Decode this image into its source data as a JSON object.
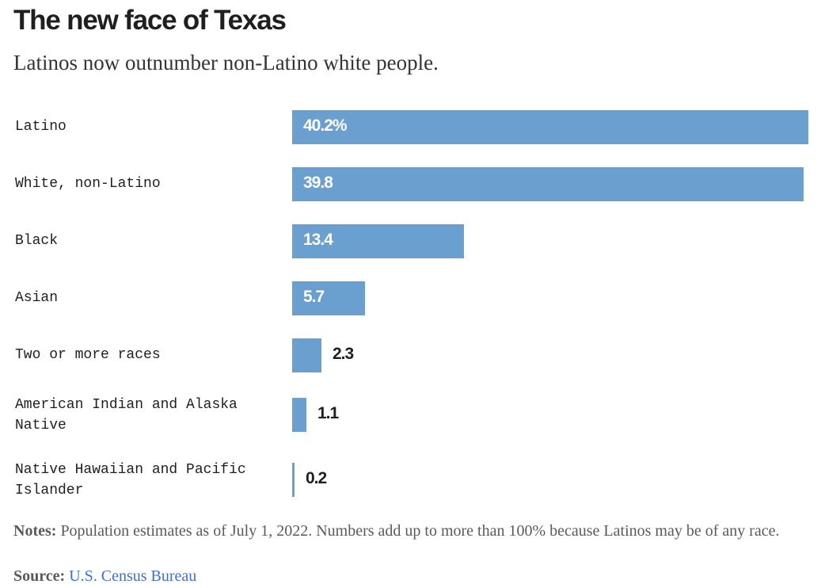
{
  "chart_data": {
    "type": "bar",
    "orientation": "horizontal",
    "title": "The new face of Texas",
    "subtitle": "Latinos now outnumber non-Latino white people.",
    "categories": [
      "Latino",
      "White, non-Latino",
      "Black",
      "Asian",
      "Two or more races",
      "American Indian and Alaska Native",
      "Native Hawaiian and Pacific Islander"
    ],
    "values": [
      40.2,
      39.8,
      13.4,
      5.7,
      2.3,
      1.1,
      0.2
    ],
    "value_labels": [
      "40.2%",
      "39.8",
      "13.4",
      "5.7",
      "2.3",
      "1.1",
      "0.2"
    ],
    "xlim": [
      0,
      40.2
    ],
    "bar_color": "#6aa0d0"
  },
  "footer": {
    "notes_label": "Notes:",
    "notes_text": " Population estimates as of July 1, 2022. Numbers add up to more than 100% because Latinos may be of any race.",
    "source_label": "Source:",
    "source_text": "U.S. Census Bureau"
  },
  "colors": {
    "link": "#3f6fd6",
    "text": "#1f1f1f",
    "muted": "#5a5a5a"
  }
}
